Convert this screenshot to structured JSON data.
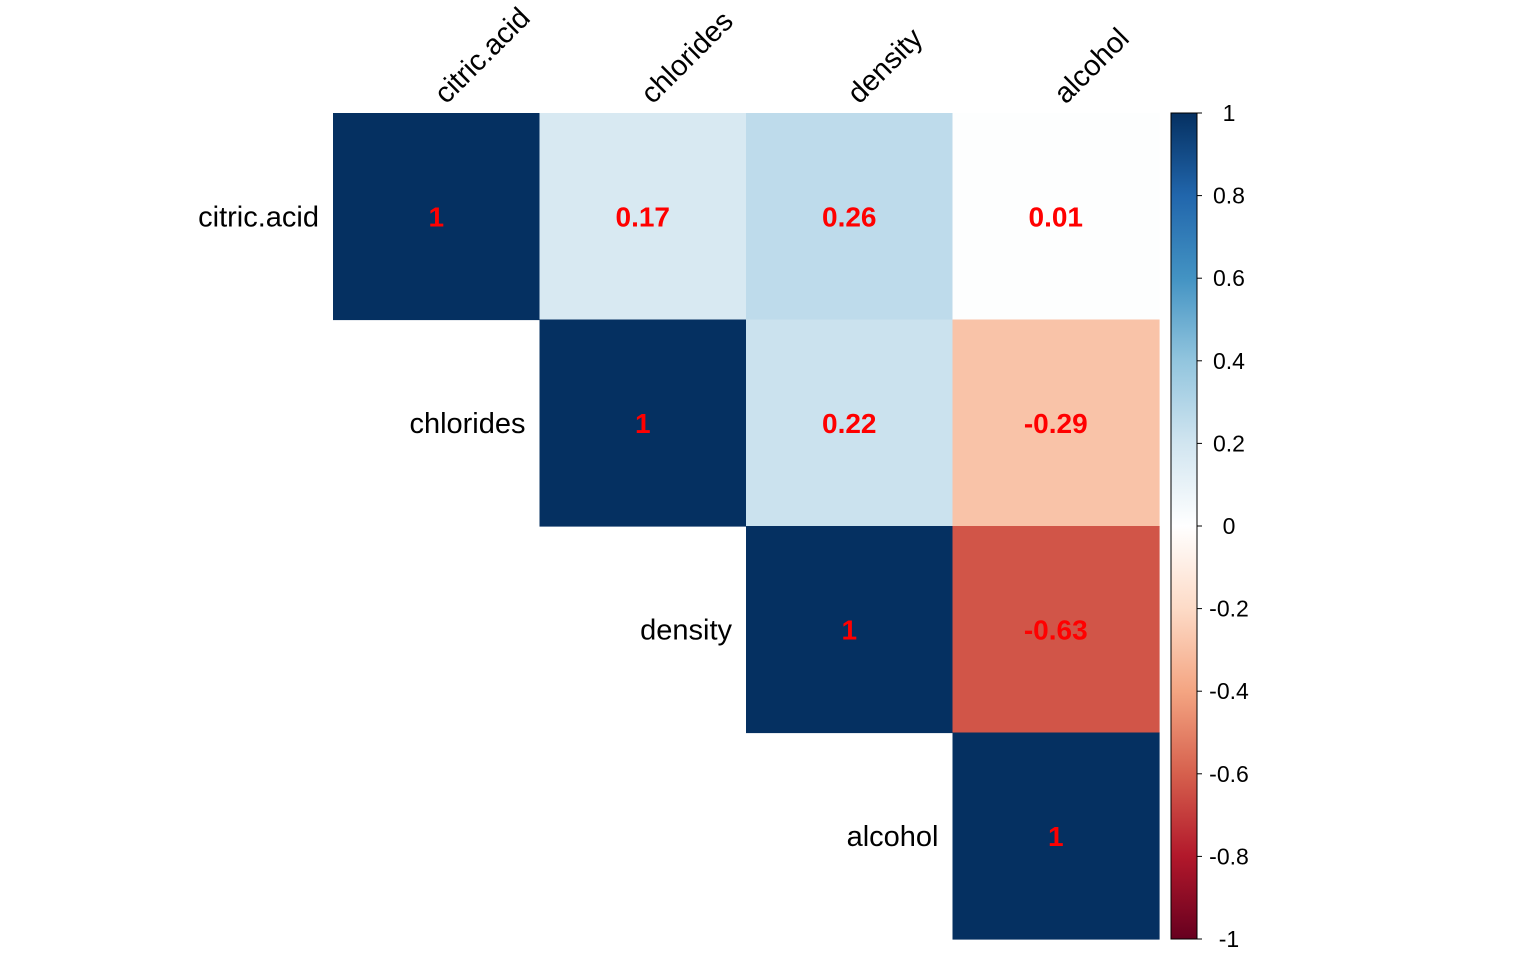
{
  "chart_data": {
    "type": "heatmap",
    "layout": "upper-triangle",
    "variables": [
      "citric.acid",
      "chlorides",
      "density",
      "alcohol"
    ],
    "matrix": [
      [
        1.0,
        0.17,
        0.26,
        0.01
      ],
      [
        0.17,
        1.0,
        0.22,
        -0.29
      ],
      [
        0.26,
        0.22,
        1.0,
        -0.63
      ],
      [
        0.01,
        -0.29,
        -0.63,
        1.0
      ]
    ],
    "value_labels": [
      [
        "1",
        "0.17",
        "0.26",
        "0.01"
      ],
      [
        "",
        "1",
        "0.22",
        "-0.29"
      ],
      [
        "",
        "",
        "1",
        "-0.63"
      ],
      [
        "",
        "",
        "",
        "1"
      ]
    ],
    "value_label_color": "#FF0000",
    "color_scale": {
      "domain": [
        -1,
        1
      ],
      "ticks": [
        "1",
        "0.8",
        "0.6",
        "0.4",
        "0.2",
        "0",
        "-0.2",
        "-0.4",
        "-0.6",
        "-0.8",
        "-1"
      ],
      "tick_values": [
        1,
        0.8,
        0.6,
        0.4,
        0.2,
        0,
        -0.2,
        -0.4,
        -0.6,
        -0.8,
        -1
      ],
      "colors": [
        "#67001F",
        "#B2182B",
        "#D6604D",
        "#F4A582",
        "#FDDBC7",
        "#FFFFFF",
        "#D1E5F0",
        "#92C5DE",
        "#4393C3",
        "#2166AC",
        "#053061"
      ]
    },
    "grid": false,
    "legend_position": "right"
  }
}
